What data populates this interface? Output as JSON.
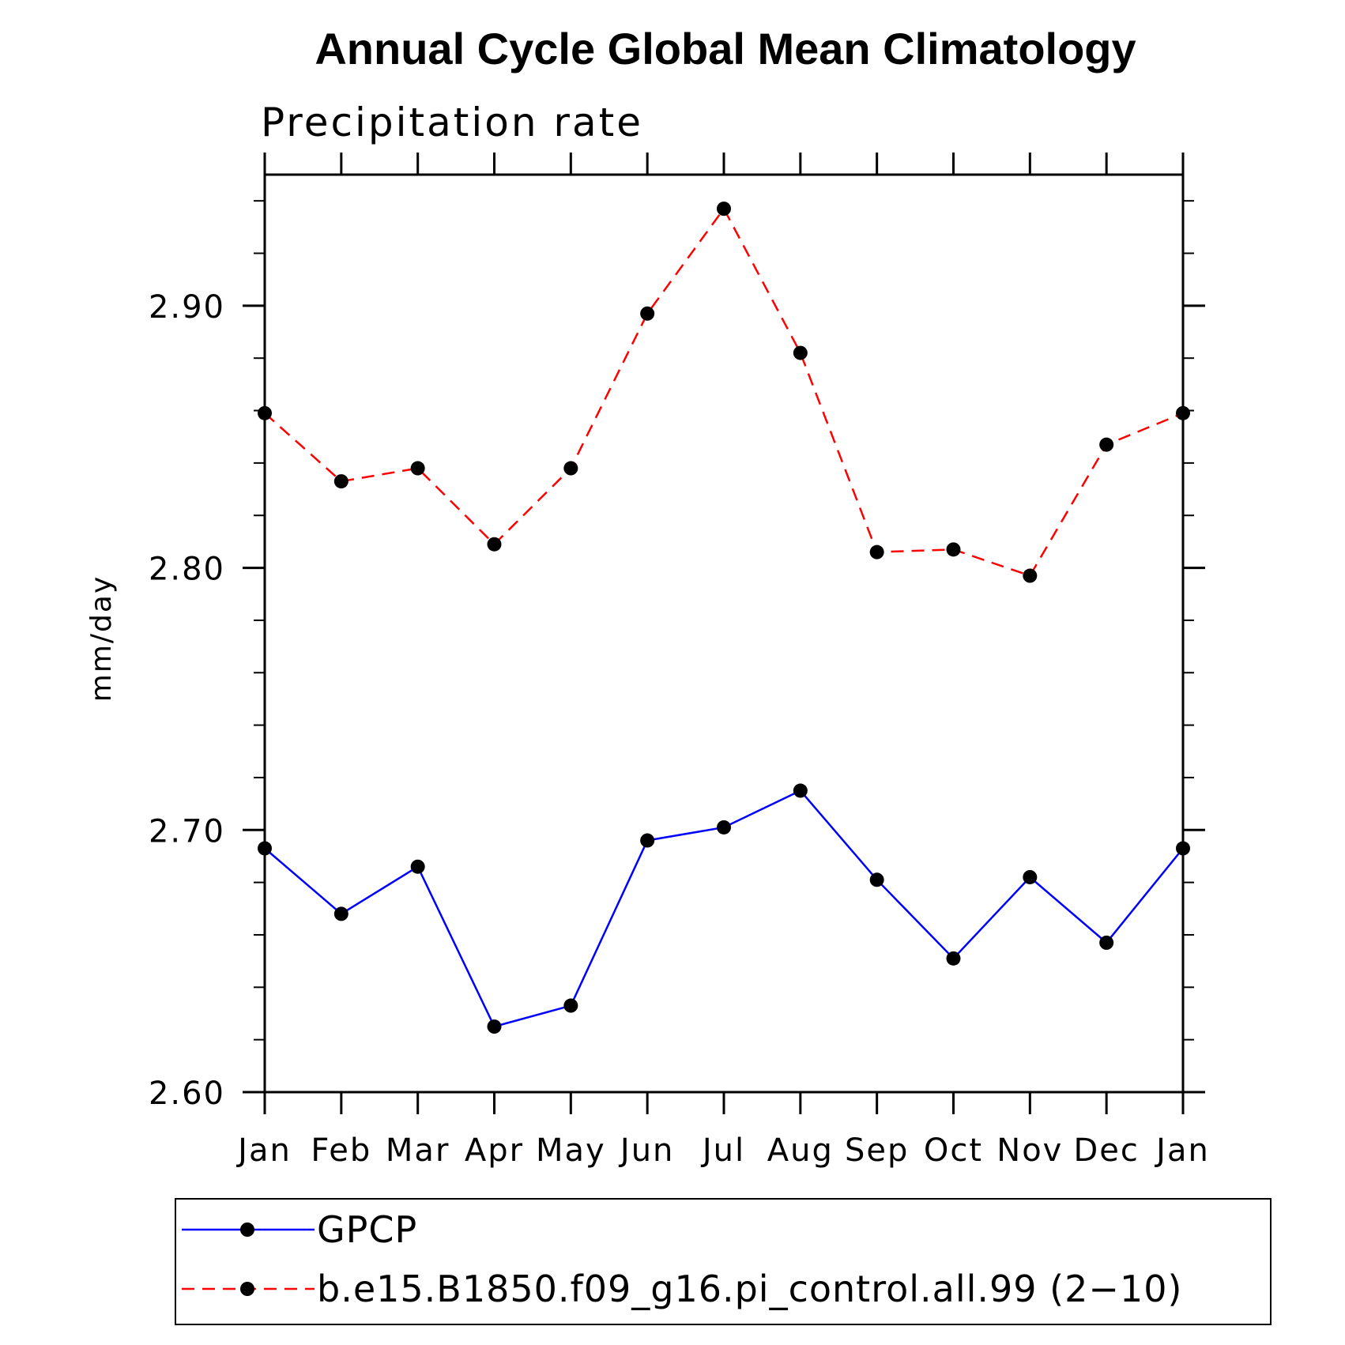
{
  "chart_data": {
    "type": "line",
    "title": "Annual Cycle Global Mean Climatology",
    "subtitle": "Precipitation rate",
    "xlabel": "",
    "ylabel": "mm/day",
    "categories": [
      "Jan",
      "Feb",
      "Mar",
      "Apr",
      "May",
      "Jun",
      "Jul",
      "Aug",
      "Sep",
      "Oct",
      "Nov",
      "Dec",
      "Jan"
    ],
    "ylim": [
      2.6,
      2.95
    ],
    "yticks": [
      "2.60",
      "2.70",
      "2.80",
      "2.90"
    ],
    "ytick_values": [
      2.6,
      2.7,
      2.8,
      2.9
    ],
    "grid": false,
    "legend_position": "bottom",
    "series": [
      {
        "name": "GPCP",
        "color": "#0000ff",
        "dash": "solid",
        "marker": "filled-circle",
        "values": [
          2.693,
          2.668,
          2.686,
          2.625,
          2.633,
          2.696,
          2.701,
          2.715,
          2.681,
          2.651,
          2.682,
          2.657,
          2.693
        ]
      },
      {
        "name": "b.e15.B1850.f09_g16.pi_control.all.99 (2−10)",
        "color": "#ff0000",
        "dash": "dashed",
        "marker": "filled-circle",
        "values": [
          2.859,
          2.833,
          2.838,
          2.809,
          2.838,
          2.897,
          2.937,
          2.882,
          2.806,
          2.807,
          2.797,
          2.847,
          2.859
        ]
      }
    ]
  }
}
